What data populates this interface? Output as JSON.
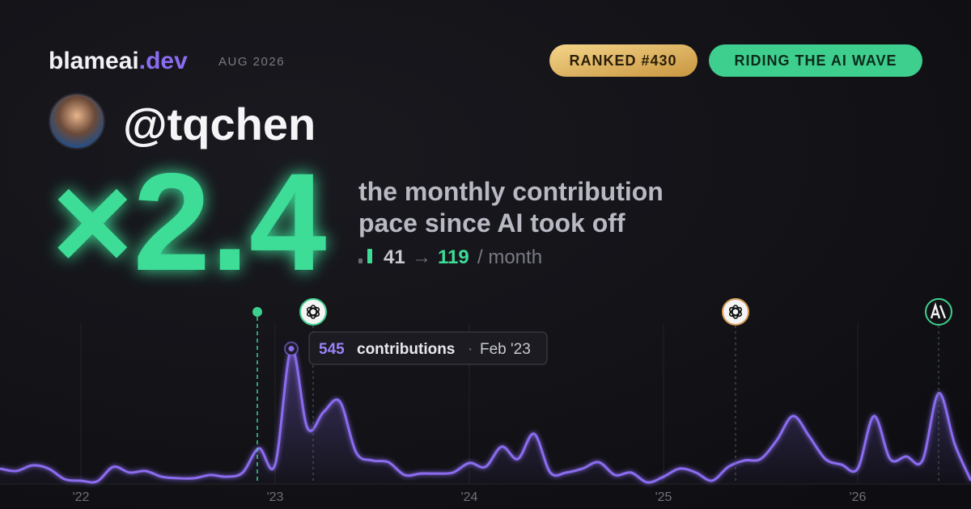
{
  "header": {
    "brand": "blameai",
    "brand_suffix": ".dev",
    "date": "AUG 2026",
    "badges": [
      "RANKED #430",
      "RIDING THE AI WAVE"
    ]
  },
  "profile": {
    "handle": "@tqchen"
  },
  "headline": {
    "multiplier": "×2.4",
    "caption_lines": [
      "the monthly contribution",
      "pace since AI took off"
    ],
    "pace": {
      "before": "41",
      "arrow": "→",
      "after": "119",
      "unit": "/ month"
    }
  },
  "chart_data": {
    "type": "line",
    "color": "#8b6cf0",
    "categories": [
      null,
      null,
      null,
      null,
      null,
      "'22",
      null,
      null,
      null,
      null,
      null,
      null,
      null,
      null,
      null,
      null,
      null,
      "'23",
      null,
      null,
      null,
      null,
      null,
      null,
      null,
      null,
      null,
      null,
      null,
      "'24",
      null,
      null,
      null,
      null,
      null,
      null,
      null,
      null,
      null,
      null,
      null,
      "'25",
      null,
      null,
      null,
      null,
      null,
      null,
      null,
      null,
      null,
      null,
      null,
      "'26",
      null,
      null,
      null,
      null,
      null,
      null,
      null
    ],
    "values": [
      59,
      49,
      72,
      59,
      16,
      10,
      7,
      66,
      43,
      49,
      26,
      20,
      20,
      33,
      26,
      43,
      141,
      75,
      545,
      223,
      289,
      331,
      125,
      92,
      85,
      33,
      39,
      39,
      43,
      82,
      66,
      148,
      98,
      200,
      43,
      43,
      59,
      85,
      33,
      43,
      3,
      26,
      59,
      43,
      10,
      66,
      92,
      98,
      174,
      272,
      190,
      98,
      75,
      59,
      272,
      98,
      108,
      92,
      364,
      157,
      10
    ],
    "ylim": [
      0,
      560
    ],
    "tooltip": {
      "label": "contributions",
      "separator": "·",
      "date": "Feb '23"
    }
  }
}
